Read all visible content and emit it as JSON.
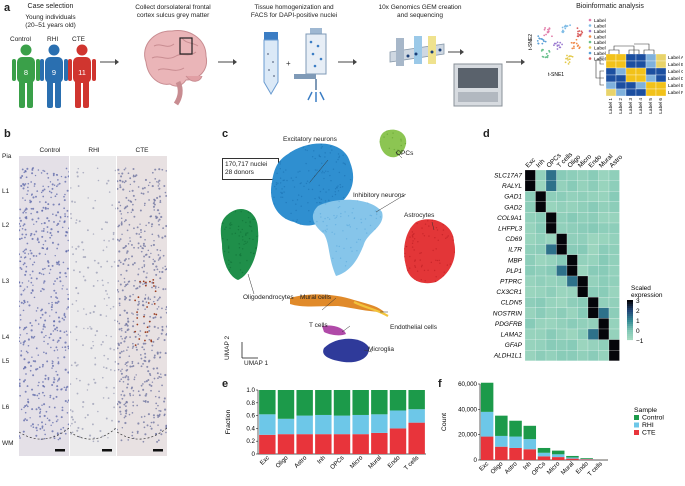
{
  "panel_a": {
    "label": "a",
    "step1": {
      "title": "Case selection",
      "subtitle": "Young individuals",
      "subtitle2": "(20–51 years old)",
      "groups": [
        {
          "name": "Control",
          "n": "8",
          "color": "#3aa049"
        },
        {
          "name": "RHI",
          "n": "9",
          "color": "#2a6fb0"
        },
        {
          "name": "CTE",
          "n": "11",
          "color": "#d0352f"
        }
      ]
    },
    "step2": {
      "line1": "Collect dorsolateral frontal",
      "line2": "cortex sulcus grey matter"
    },
    "step3": {
      "line1": "Tissue homogenization and",
      "line2": "FACS for DAPI-positive nuclei"
    },
    "step4": {
      "line1": "10x Genomics GEM creation",
      "line2": "and sequencing"
    },
    "step5": {
      "title": "Bioinformatic analysis",
      "tsne1": "t-SNE1",
      "tsne2": "t-SNE2",
      "legend": [
        "Label",
        "Label",
        "Label",
        "Label",
        "Label",
        "Label",
        "Label",
        "Label"
      ],
      "rows": [
        "Label A",
        "Label B",
        "Label C",
        "Label D",
        "Label E",
        "Label F"
      ],
      "cols": [
        "Label 1",
        "Label 2",
        "Label 3",
        "Label 4",
        "Label 5",
        "Label 6"
      ]
    }
  },
  "panel_b": {
    "label": "b",
    "columns": [
      "Control",
      "RHI",
      "CTE"
    ],
    "layers": [
      "Pia",
      "L1",
      "L2",
      "L3",
      "L4",
      "L5",
      "L6",
      "WM"
    ]
  },
  "panel_c": {
    "label": "c",
    "info1": "170,717 nuclei",
    "info2": "28 donors",
    "clusters": {
      "exc": "Excitatory neurons",
      "opc": "OPCs",
      "inh": "Inhibitory neurons",
      "astro": "Astrocytes",
      "oligo": "Oligodendrocytes",
      "mural": "Mural cells",
      "tcell": "T cells",
      "endo": "Endothelial cells",
      "micro": "Microglia"
    },
    "axis2": "UMAP 2",
    "axis1": "UMAP 1"
  },
  "panel_d": {
    "label": "d",
    "cols": [
      "Exc",
      "Inh",
      "OPCs",
      "T cells",
      "Oligo",
      "Micro",
      "Endo",
      "Mural",
      "Astro"
    ],
    "genes": [
      "SLC17A7",
      "RALYL",
      "GAD1",
      "GAD2",
      "COL9A1",
      "LHFPL3",
      "CD69",
      "IL7R",
      "MBP",
      "PLP1",
      "PTPRC",
      "CX3CR1",
      "CLDN5",
      "NOSTRIN",
      "PDGFRB",
      "LAMA2",
      "GFAP",
      "ALDH1L1"
    ],
    "colorbar_title1": "Scaled",
    "colorbar_title2": "expression",
    "colorbar_ticks": [
      "3",
      "2",
      "1",
      "0",
      "−1"
    ]
  },
  "chart_data": [
    {
      "type": "bar",
      "panel": "e",
      "stacked": true,
      "categories": [
        "Exc",
        "Oligo",
        "Astro",
        "Inh",
        "OPCs",
        "Micro",
        "Mural",
        "Endo",
        "T cells"
      ],
      "ylabel": "Fraction",
      "ylim": [
        0,
        1
      ],
      "yticks": [
        "0",
        "0.2",
        "0.4",
        "0.6",
        "0.8",
        "1.0"
      ],
      "series": [
        {
          "name": "CTE",
          "color": "#e8343b",
          "values": [
            0.3,
            0.31,
            0.31,
            0.31,
            0.31,
            0.31,
            0.33,
            0.4,
            0.49
          ]
        },
        {
          "name": "RHI",
          "color": "#6dc7e8",
          "values": [
            0.32,
            0.24,
            0.29,
            0.3,
            0.29,
            0.3,
            0.29,
            0.28,
            0.21
          ]
        },
        {
          "name": "Control",
          "color": "#1c9a4a",
          "values": [
            0.38,
            0.45,
            0.4,
            0.39,
            0.4,
            0.39,
            0.38,
            0.32,
            0.3
          ]
        }
      ]
    },
    {
      "type": "bar",
      "panel": "f",
      "stacked": true,
      "categories": [
        "Exc",
        "Oligo",
        "Astro",
        "Inh",
        "OPCs",
        "Micro",
        "Mural",
        "Endo",
        "T cells"
      ],
      "ylabel": "Count",
      "ylim": [
        0,
        60000
      ],
      "yticks": [
        "0",
        "20,000",
        "40,000",
        "60,000"
      ],
      "legend_title": "Sample",
      "series": [
        {
          "name": "CTE",
          "color": "#e8343b",
          "values": [
            18500,
            10500,
            9500,
            8500,
            2900,
            2300,
            1100,
            500,
            60
          ]
        },
        {
          "name": "RHI",
          "color": "#6dc7e8",
          "values": [
            19500,
            8500,
            9000,
            8000,
            2800,
            2200,
            900,
            400,
            30
          ]
        },
        {
          "name": "Control",
          "color": "#1c9a4a",
          "values": [
            23000,
            16000,
            12500,
            10500,
            3800,
            2900,
            1200,
            600,
            40
          ]
        }
      ]
    }
  ],
  "panel_e_label": "e",
  "panel_f_label": "f"
}
